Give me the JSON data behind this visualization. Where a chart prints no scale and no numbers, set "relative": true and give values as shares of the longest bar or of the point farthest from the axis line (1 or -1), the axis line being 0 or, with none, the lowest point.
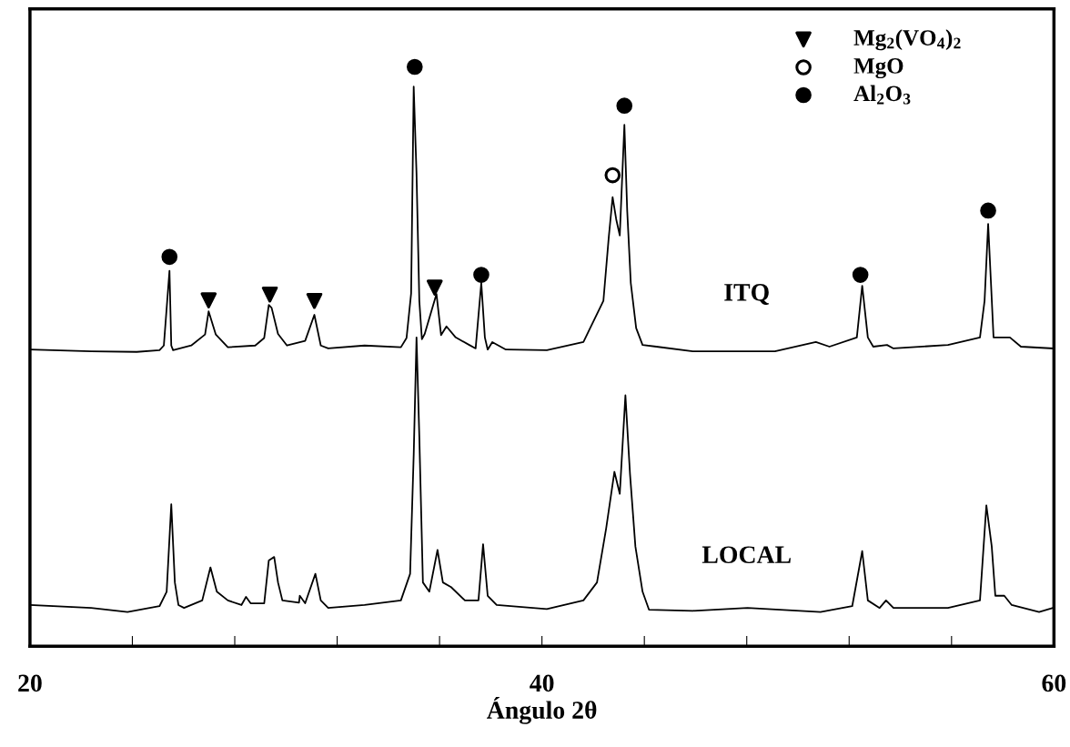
{
  "chart_data": {
    "type": "line",
    "relative": true,
    "xlabel": "Ángulo 2θ",
    "xlim": [
      20,
      60
    ],
    "xticks": [
      20,
      {
        "value": 24,
        "label": null
      },
      {
        "value": 28,
        "label": null
      },
      {
        "value": 32,
        "label": null
      },
      {
        "value": 36,
        "label": null
      },
      40,
      {
        "value": 44,
        "label": null
      },
      {
        "value": 48,
        "label": null
      },
      {
        "value": 52,
        "label": null
      },
      {
        "value": 56,
        "label": null
      },
      60
    ],
    "tick_labels": "x",
    "legend": "top right",
    "line_style": "solid",
    "series": [
      {
        "name": "ITQ",
        "color": "#000000",
        "marker": "none",
        "x": [
          20.0,
          22.39,
          24.17,
          25.06,
          25.23,
          25.45,
          25.52,
          25.59,
          26.3,
          26.84,
          26.98,
          27.26,
          27.73,
          28.8,
          29.15,
          29.33,
          29.44,
          29.69,
          30.04,
          30.75,
          31.11,
          31.36,
          31.65,
          33.07,
          34.49,
          34.71,
          34.89,
          34.99,
          35.1,
          35.21,
          35.31,
          35.42,
          35.88,
          36.06,
          36.27,
          36.63,
          37.16,
          37.41,
          37.63,
          37.77,
          37.88,
          38.06,
          38.59,
          40.19,
          41.62,
          42.4,
          42.61,
          42.76,
          42.9,
          43.04,
          43.22,
          43.33,
          43.47,
          43.68,
          43.93,
          44.47,
          45.89,
          49.1,
          50.7,
          51.23,
          52.3,
          52.51,
          52.73,
          52.94,
          53.48,
          53.73,
          55.86,
          57.11,
          57.29,
          57.43,
          57.54,
          57.64,
          58.28,
          58.71,
          59.96
        ],
        "values": [
          0.512,
          0.509,
          0.508,
          0.511,
          0.519,
          0.648,
          0.519,
          0.511,
          0.519,
          0.538,
          0.578,
          0.538,
          0.516,
          0.519,
          0.532,
          0.589,
          0.584,
          0.539,
          0.519,
          0.527,
          0.572,
          0.519,
          0.514,
          0.519,
          0.516,
          0.532,
          0.609,
          0.966,
          0.816,
          0.596,
          0.53,
          0.539,
          0.608,
          0.537,
          0.552,
          0.533,
          0.52,
          0.514,
          0.627,
          0.533,
          0.512,
          0.525,
          0.512,
          0.511,
          0.525,
          0.596,
          0.706,
          0.775,
          0.737,
          0.709,
          0.9,
          0.752,
          0.627,
          0.549,
          0.52,
          0.517,
          0.509,
          0.509,
          0.525,
          0.517,
          0.533,
          0.622,
          0.533,
          0.517,
          0.52,
          0.514,
          0.52,
          0.533,
          0.596,
          0.729,
          0.627,
          0.533,
          0.533,
          0.517,
          0.514
        ]
      },
      {
        "name": "LOCAL",
        "color": "#000000",
        "marker": "none",
        "x": [
          20.0,
          22.39,
          23.81,
          25.06,
          25.34,
          25.52,
          25.66,
          25.8,
          26.02,
          26.73,
          27.05,
          27.3,
          27.73,
          28.26,
          28.44,
          28.62,
          29.15,
          29.33,
          29.54,
          29.69,
          29.86,
          30.51,
          30.54,
          30.75,
          31.15,
          31.36,
          31.65,
          33.07,
          34.49,
          34.85,
          34.99,
          35.1,
          35.21,
          35.35,
          35.6,
          35.92,
          36.13,
          36.45,
          36.99,
          37.52,
          37.7,
          37.88,
          38.23,
          40.19,
          41.62,
          42.15,
          42.51,
          42.83,
          43.04,
          43.26,
          43.44,
          43.65,
          43.93,
          44.18,
          45.89,
          48.03,
          50.88,
          52.12,
          52.51,
          52.73,
          53.19,
          53.44,
          53.73,
          55.86,
          57.11,
          57.36,
          57.57,
          57.71,
          58.06,
          58.35,
          59.42,
          59.96
        ],
        "values": [
          0.071,
          0.066,
          0.059,
          0.069,
          0.094,
          0.245,
          0.11,
          0.071,
          0.066,
          0.079,
          0.136,
          0.094,
          0.079,
          0.071,
          0.085,
          0.074,
          0.074,
          0.148,
          0.154,
          0.11,
          0.079,
          0.075,
          0.087,
          0.074,
          0.125,
          0.079,
          0.066,
          0.071,
          0.079,
          0.125,
          0.33,
          0.533,
          0.361,
          0.11,
          0.094,
          0.166,
          0.11,
          0.102,
          0.079,
          0.079,
          0.176,
          0.087,
          0.071,
          0.064,
          0.079,
          0.11,
          0.204,
          0.301,
          0.263,
          0.433,
          0.297,
          0.172,
          0.094,
          0.063,
          0.061,
          0.066,
          0.059,
          0.069,
          0.164,
          0.079,
          0.066,
          0.079,
          0.066,
          0.066,
          0.079,
          0.243,
          0.172,
          0.087,
          0.087,
          0.071,
          0.059,
          0.066
        ]
      },
      {
        "type": "scatter",
        "name": "Mg$_{2}$(VO$_{4}$)$_{2}$",
        "color": "#000000",
        "marker": "triangle",
        "x": [
          26.98,
          29.37,
          31.11,
          35.81
        ],
        "values": [
          0.597,
          0.607,
          0.596,
          0.619
        ]
      },
      {
        "type": "scatter",
        "name": "MgO",
        "color": "#ffffff",
        "marker": "circle",
        "x": [
          42.76
        ],
        "values": [
          0.813
        ]
      },
      {
        "type": "scatter",
        "name": "Al$_{2}$O$_{3}$",
        "color": "#000000",
        "marker": "circle",
        "x": [
          25.45,
          35.03,
          37.63,
          43.22,
          52.44,
          57.43
        ],
        "values": [
          0.672,
          1.0,
          0.641,
          0.933,
          0.641,
          0.752
        ]
      }
    ]
  }
}
